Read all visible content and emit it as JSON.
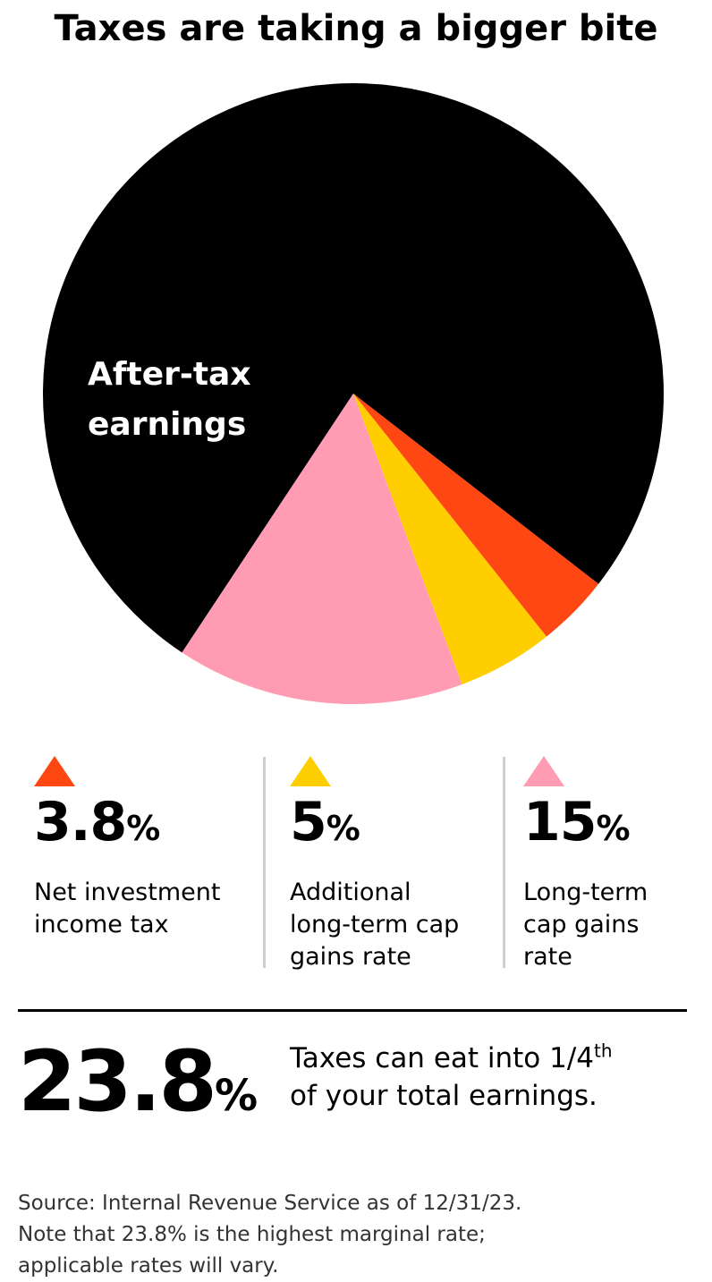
{
  "title": "Taxes are taking a bigger bite",
  "chart_data": {
    "type": "pie",
    "title": "Taxes are taking a bigger bite",
    "slices": [
      {
        "label": "After-tax earnings",
        "value": 76.2,
        "color": "#000000"
      },
      {
        "label": "Net investment income tax",
        "value": 3.8,
        "color": "#ff4713"
      },
      {
        "label": "Additional long-term cap gains rate",
        "value": 5,
        "color": "#ffce00"
      },
      {
        "label": "Long-term cap gains rate",
        "value": 15,
        "color": "#ff9bb3"
      }
    ],
    "inner_label_lines": [
      "After-tax",
      "earnings"
    ],
    "legend_placement": "bottom"
  },
  "stats": [
    {
      "value": "3.8",
      "unit": "%",
      "desc_lines": [
        "Net investment",
        "income tax"
      ],
      "color": "#ff4713",
      "icon": "triangle-up-icon"
    },
    {
      "value": "5",
      "unit": "%",
      "desc_lines": [
        "Additional",
        "long-term cap",
        "gains rate"
      ],
      "color": "#ffce00",
      "icon": "triangle-up-icon"
    },
    {
      "value": "15",
      "unit": "%",
      "desc_lines": [
        "Long-term",
        "cap gains",
        "rate"
      ],
      "color": "#ff9bb3",
      "icon": "triangle-up-icon"
    }
  ],
  "total": {
    "value": "23.8",
    "unit": "%",
    "desc_line1_pre": "Taxes can eat into 1/4",
    "desc_line1_sup": "th",
    "desc_line2": "of your total earnings."
  },
  "footnote_lines": [
    "Source: Internal Revenue Service as of 12/31/23.",
    "Note that 23.8% is the highest marginal rate;",
    "applicable rates will vary."
  ]
}
